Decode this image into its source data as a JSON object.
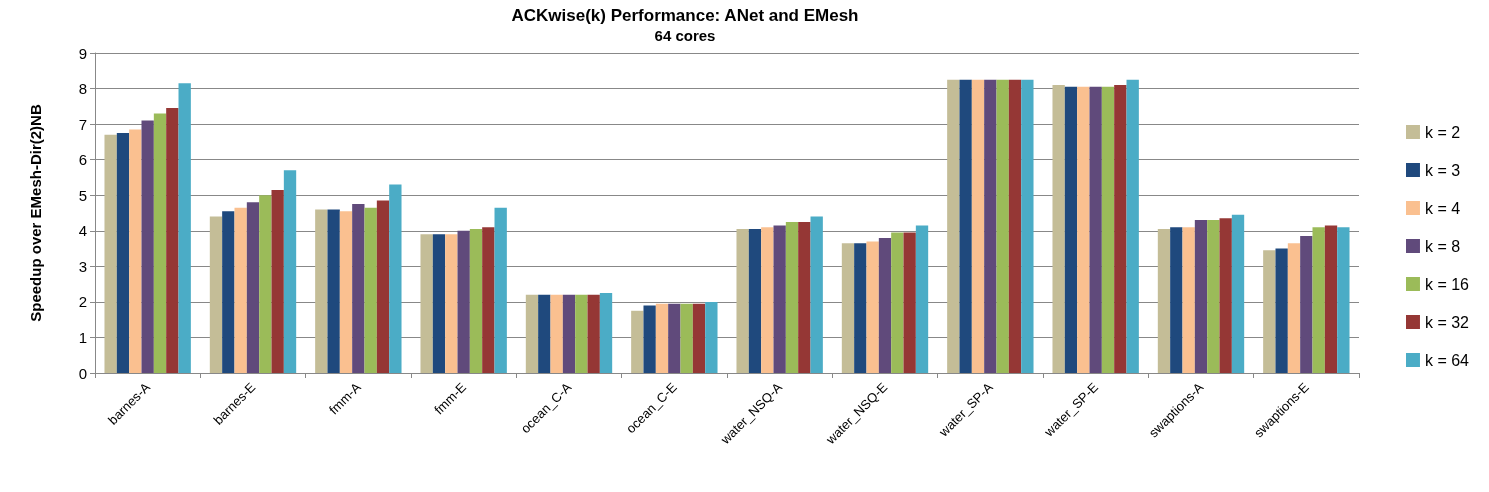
{
  "chart_data": {
    "type": "bar",
    "title": "ACKwise(k) Performance: ANet and EMesh",
    "subtitle": "64 cores",
    "ylabel": "Speedup over EMesh-Dir(2)NB",
    "categories": [
      "barnes-A",
      "barnes-E",
      "fmm-A",
      "fmm-E",
      "ocean_C-A",
      "ocean_C-E",
      "water_NSQ-A",
      "water_NSQ-E",
      "water_SP-A",
      "water_SP-E",
      "swaptions-A",
      "swaptions-E"
    ],
    "series": [
      {
        "name": "k = 2",
        "color": "#c4bd97",
        "values": [
          6.7,
          4.4,
          4.6,
          3.9,
          2.2,
          1.75,
          4.05,
          3.65,
          8.25,
          8.1,
          4.05,
          3.45
        ]
      },
      {
        "name": "k = 3",
        "color": "#1f497d",
        "values": [
          6.75,
          4.55,
          4.6,
          3.9,
          2.2,
          1.9,
          4.05,
          3.65,
          8.25,
          8.05,
          4.1,
          3.5
        ]
      },
      {
        "name": "k = 4",
        "color": "#fac090",
        "values": [
          6.85,
          4.65,
          4.55,
          3.9,
          2.2,
          1.95,
          4.1,
          3.7,
          8.25,
          8.05,
          4.1,
          3.65
        ]
      },
      {
        "name": "k = 8",
        "color": "#604a7b",
        "values": [
          7.1,
          4.8,
          4.75,
          4.0,
          2.2,
          1.95,
          4.15,
          3.8,
          8.25,
          8.05,
          4.3,
          3.85
        ]
      },
      {
        "name": "k = 16",
        "color": "#9bbb59",
        "values": [
          7.3,
          5.0,
          4.65,
          4.05,
          2.2,
          1.95,
          4.25,
          3.95,
          8.25,
          8.05,
          4.3,
          4.1
        ]
      },
      {
        "name": "k = 32",
        "color": "#953735",
        "values": [
          7.45,
          5.15,
          4.85,
          4.1,
          2.2,
          1.95,
          4.25,
          3.95,
          8.25,
          8.1,
          4.35,
          4.15
        ]
      },
      {
        "name": "k = 64",
        "color": "#4bacc6",
        "values": [
          8.15,
          5.7,
          5.3,
          4.65,
          2.25,
          2.0,
          4.4,
          4.15,
          8.25,
          8.25,
          4.45,
          4.1
        ]
      }
    ],
    "ylim": [
      0,
      9
    ],
    "yticks": [
      0,
      1,
      2,
      3,
      4,
      5,
      6,
      7,
      8,
      9
    ],
    "grid": "y",
    "legend": "right"
  }
}
